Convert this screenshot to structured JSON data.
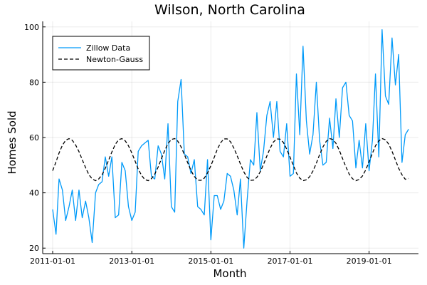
{
  "chart_data": {
    "type": "line",
    "title": "Wilson, North Carolina",
    "xlabel": "Month",
    "ylabel": "Homes Sold",
    "xlim": [
      "2010-10-01",
      "2020-04-01"
    ],
    "ylim": [
      18,
      102
    ],
    "x_ticks": [
      "2011-01-01",
      "2013-01-01",
      "2015-01-01",
      "2017-01-01",
      "2019-01-01"
    ],
    "y_ticks": [
      20,
      40,
      60,
      80,
      100
    ],
    "grid": true,
    "legend_position": "top-left",
    "series": [
      {
        "name": "Zillow Data",
        "color": "#009af9",
        "style": "solid",
        "start": "2011-01-01",
        "frequency": "monthly",
        "values": [
          34,
          25,
          45,
          41,
          30,
          35,
          41,
          30,
          41,
          31,
          37,
          31,
          22,
          40,
          43,
          44,
          53,
          46,
          53,
          31,
          32,
          51,
          48,
          35,
          30,
          33,
          55,
          57,
          58,
          59,
          46,
          45,
          57,
          54,
          45,
          65,
          35,
          33,
          73,
          81,
          54,
          53,
          47,
          52,
          35,
          34,
          32,
          52,
          23,
          39,
          39,
          34,
          37,
          47,
          46,
          41,
          32,
          45,
          20,
          37,
          52,
          50,
          69,
          48,
          55,
          68,
          73,
          60,
          73,
          55,
          53,
          65,
          46,
          47,
          83,
          61,
          93,
          66,
          54,
          61,
          80,
          59,
          50,
          51,
          67,
          56,
          74,
          60,
          78,
          80,
          68,
          66,
          49,
          59,
          49,
          65,
          48,
          59,
          83,
          53,
          99,
          75,
          72,
          96,
          79,
          90,
          51,
          61,
          63
        ]
      },
      {
        "name": "Newton-Gauss",
        "color": "#000000",
        "style": "dashed",
        "start": "2011-01-01",
        "frequency": "monthly",
        "values": [
          48.0,
          51.2,
          54.4,
          57.2,
          59.0,
          59.6,
          59.0,
          57.3,
          54.9,
          52.0,
          49.1,
          46.6,
          45.0,
          44.4,
          45.0,
          46.5,
          48.9,
          51.8,
          54.8,
          57.5,
          59.2,
          59.6,
          58.8,
          57.0,
          54.4,
          51.4,
          48.6,
          46.3,
          44.8,
          44.4,
          45.1,
          46.8,
          49.3,
          52.3,
          55.3,
          57.8,
          59.3,
          59.6,
          58.7,
          56.6,
          53.9,
          50.9,
          48.1,
          45.9,
          44.6,
          44.5,
          45.3,
          47.2,
          49.8,
          52.8,
          55.7,
          58.1,
          59.5,
          59.5,
          58.5,
          56.2,
          53.4,
          50.4,
          47.6,
          45.6,
          44.5,
          44.6,
          45.6,
          47.6,
          50.3,
          53.3,
          56.1,
          58.4,
          59.5,
          59.4,
          58.2,
          55.8,
          52.9,
          49.9,
          47.2,
          45.3,
          44.4,
          44.7,
          45.8,
          47.9,
          50.7,
          53.8,
          56.6,
          58.6,
          59.6,
          59.3,
          57.9,
          55.4,
          52.4,
          49.4,
          46.8,
          45.1,
          44.4,
          44.8,
          46.1,
          48.3,
          51.2,
          54.3,
          57.0,
          58.8,
          59.6,
          59.2,
          57.6,
          55.0,
          51.9,
          48.9,
          46.5,
          44.9,
          45.2
        ]
      }
    ]
  }
}
